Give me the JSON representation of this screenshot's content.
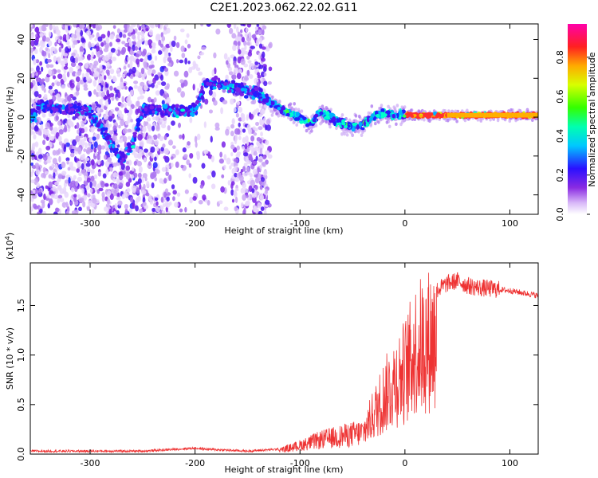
{
  "title": "C2E1.2023.062.22.02.G11",
  "chart_data": [
    {
      "type": "heatmap",
      "xlabel": "Height of straight line (km)",
      "ylabel": "Frequency (Hz)",
      "xlim": [
        -357,
        127
      ],
      "ylim": [
        -50,
        48
      ],
      "xticks": [
        -300,
        -200,
        -100,
        0,
        100
      ],
      "yticks": [
        -40,
        -20,
        0,
        20,
        40
      ],
      "colorbar": {
        "label": "Normalized spectral amplitude",
        "range": [
          0,
          0.97
        ],
        "ticks": [
          "0.0",
          "0.2",
          "0.4",
          "0.6",
          "0.8"
        ],
        "colormap": "rainbow-white-violet-blue-cyan-green-yellow-red-magenta"
      },
      "ridge": {
        "description_points_x": [
          -350,
          -300,
          -270,
          -260,
          -250,
          -220,
          -200,
          -190,
          -160,
          -140,
          -130,
          -110,
          -100,
          -90,
          -80,
          -60,
          -50,
          -40,
          -30,
          -20,
          -10,
          0,
          50,
          100,
          127
        ],
        "description_points_y": [
          6,
          3,
          -22,
          -15,
          4,
          3,
          3,
          18,
          15,
          12,
          8,
          2,
          0,
          -4,
          2,
          -3,
          -5,
          -4,
          0,
          2,
          1,
          1,
          1,
          1,
          1
        ]
      }
    },
    {
      "type": "line",
      "xlabel": "Height of straight line (km)",
      "ylabel": "SNR (10 * v/v)",
      "yscale_label": "(x10",
      "yscale_exp": "4",
      "yscale_close": ")",
      "xlim": [
        -357,
        127
      ],
      "ylim": [
        0,
        1.93
      ],
      "xticks": [
        -300,
        -200,
        -100,
        0,
        100
      ],
      "yticks": [
        "0.0",
        "0.5",
        "1.0",
        "1.5"
      ],
      "ytick_values": [
        0,
        0.5,
        1.0,
        1.5
      ],
      "series_color": "#ee3333",
      "envelope_x": [
        -357,
        -250,
        -200,
        -190,
        -150,
        -120,
        -100,
        -80,
        -60,
        -40,
        -30,
        -20,
        -10,
        0,
        10,
        20,
        30,
        40,
        50,
        60,
        70,
        80,
        100,
        127
      ],
      "envelope_y": [
        0.03,
        0.03,
        0.06,
        0.05,
        0.03,
        0.05,
        0.12,
        0.2,
        0.25,
        0.3,
        0.55,
        0.8,
        1.0,
        1.15,
        1.45,
        1.55,
        1.65,
        1.72,
        1.75,
        1.7,
        1.68,
        1.67,
        1.65,
        1.6
      ]
    }
  ]
}
